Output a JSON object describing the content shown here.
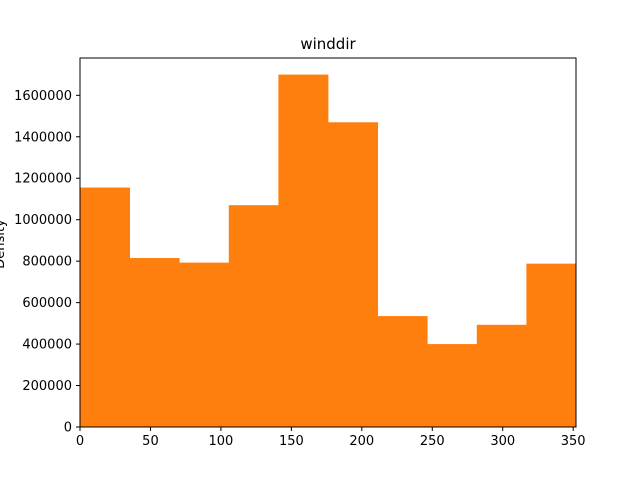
{
  "chart_data": {
    "type": "bar",
    "title": "winddir",
    "xlabel": "",
    "ylabel": "Density",
    "xlim": [
      0,
      352
    ],
    "ylim": [
      0,
      1780000
    ],
    "bin_edges": [
      0,
      35.2,
      70.4,
      105.6,
      140.8,
      176,
      211.2,
      246.4,
      281.6,
      316.8,
      352
    ],
    "values": [
      1155000,
      815000,
      793000,
      1070000,
      1700000,
      1470000,
      535000,
      400000,
      493000,
      788000
    ],
    "bar_color": "#ff7f0e",
    "x_ticks": [
      0,
      50,
      100,
      150,
      200,
      250,
      300,
      350
    ],
    "x_tick_labels": [
      "0",
      "50",
      "100",
      "150",
      "200",
      "250",
      "300",
      "350"
    ],
    "y_ticks": [
      0,
      200000,
      400000,
      600000,
      800000,
      1000000,
      1200000,
      1400000,
      1600000
    ],
    "y_tick_labels": [
      "0",
      "200000",
      "400000",
      "600000",
      "800000",
      "1000000",
      "1200000",
      "1400000",
      "1600000"
    ],
    "grid": false,
    "legend": "none"
  }
}
